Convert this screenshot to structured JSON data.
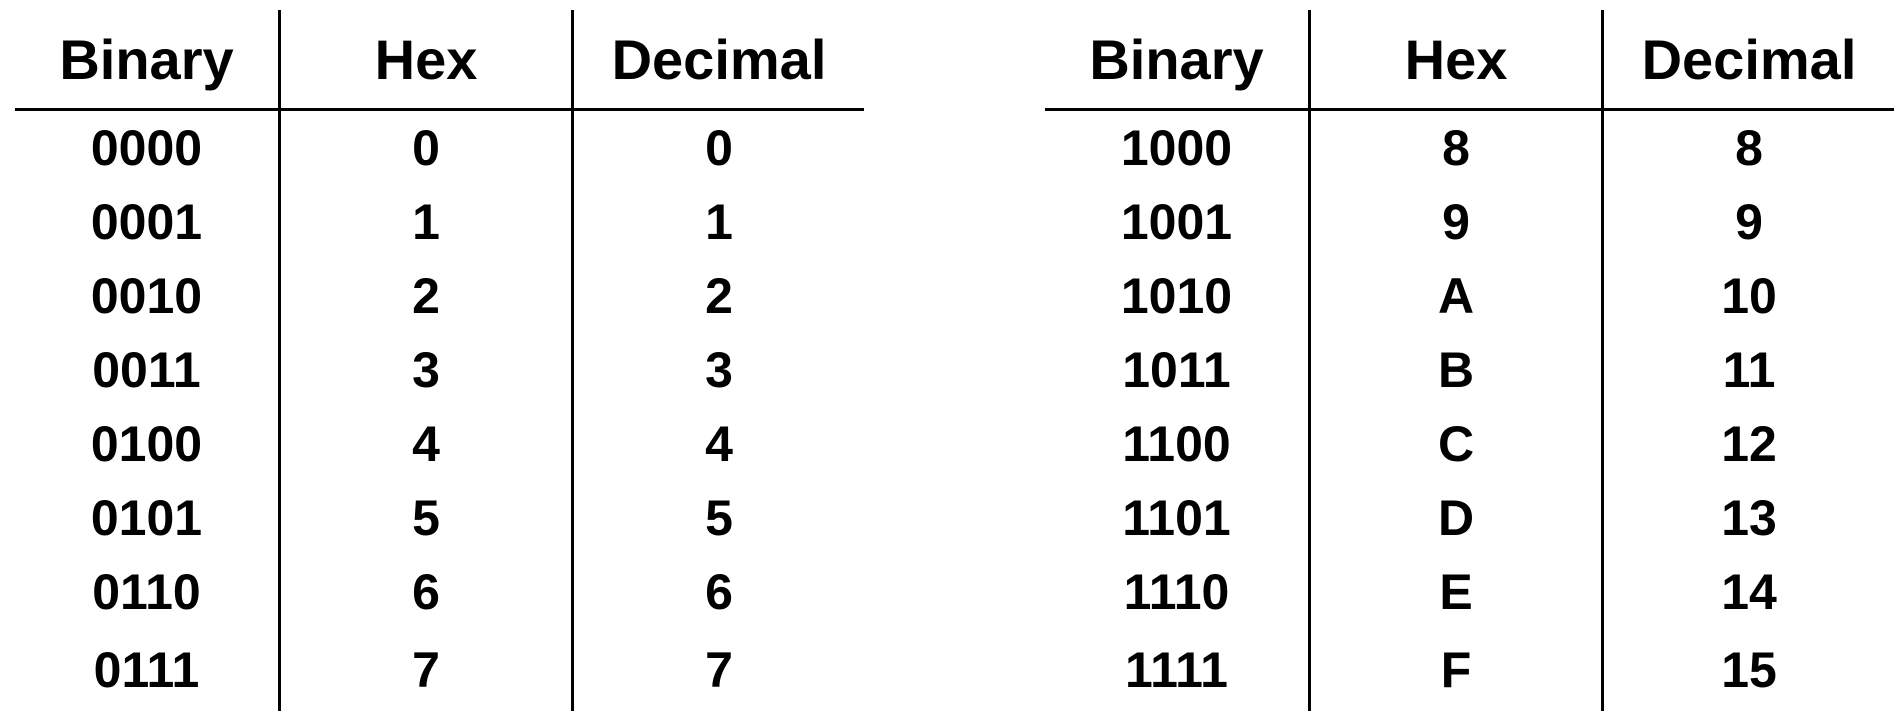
{
  "headers": {
    "binary": "Binary",
    "hex": "Hex",
    "decimal": "Decimal"
  },
  "left_rows": [
    {
      "binary": "0000",
      "hex": "0",
      "decimal": "0"
    },
    {
      "binary": "0001",
      "hex": "1",
      "decimal": "1"
    },
    {
      "binary": "0010",
      "hex": "2",
      "decimal": "2"
    },
    {
      "binary": "0011",
      "hex": "3",
      "decimal": "3"
    },
    {
      "binary": "0100",
      "hex": "4",
      "decimal": "4"
    },
    {
      "binary": "0101",
      "hex": "5",
      "decimal": "5"
    },
    {
      "binary": "0110",
      "hex": "6",
      "decimal": "6"
    },
    {
      "binary": "0111",
      "hex": "7",
      "decimal": "7"
    }
  ],
  "right_rows": [
    {
      "binary": "1000",
      "hex": "8",
      "decimal": "8"
    },
    {
      "binary": "1001",
      "hex": "9",
      "decimal": "9"
    },
    {
      "binary": "1010",
      "hex": "A",
      "decimal": "10"
    },
    {
      "binary": "1011",
      "hex": "B",
      "decimal": "11"
    },
    {
      "binary": "1100",
      "hex": "C",
      "decimal": "12"
    },
    {
      "binary": "1101",
      "hex": "D",
      "decimal": "13"
    },
    {
      "binary": "1110",
      "hex": "E",
      "decimal": "14"
    },
    {
      "binary": "1111",
      "hex": "F",
      "decimal": "15"
    }
  ]
}
